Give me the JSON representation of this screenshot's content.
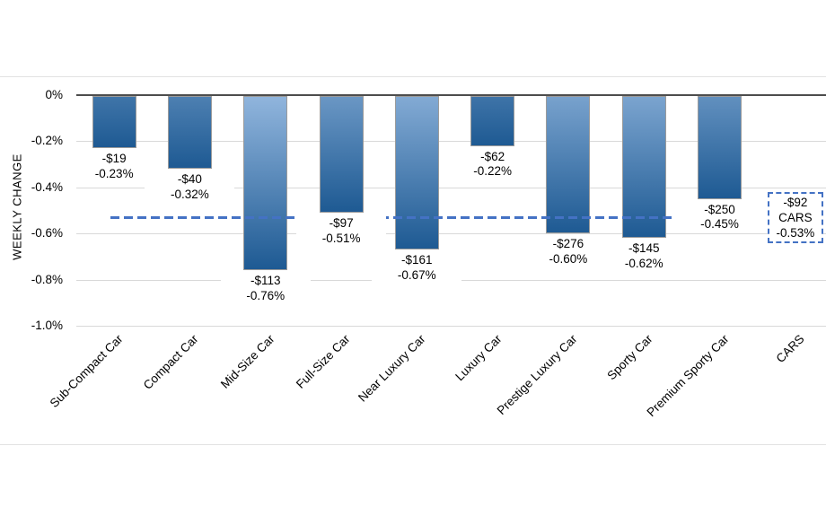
{
  "chart_data": {
    "type": "bar",
    "title": "",
    "ylabel": "WEEKLY CHANGE",
    "ylim": [
      -1.0,
      0
    ],
    "grid": true,
    "yticks": [
      {
        "value": 0,
        "label": "0%"
      },
      {
        "value": -0.2,
        "label": "-0.2%"
      },
      {
        "value": -0.4,
        "label": "-0.4%"
      },
      {
        "value": -0.6,
        "label": "-0.6%"
      },
      {
        "value": -0.8,
        "label": "-0.8%"
      },
      {
        "value": -1.0,
        "label": "-1.0%"
      }
    ],
    "categories": [
      {
        "label": "Sub-Compact Car",
        "value": -0.23,
        "money": "-$19",
        "pct_label": "-0.23%"
      },
      {
        "label": "Compact Car",
        "value": -0.32,
        "money": "-$40",
        "pct_label": "-0.32%"
      },
      {
        "label": "Mid-Size Car",
        "value": -0.76,
        "money": "-$113",
        "pct_label": "-0.76%"
      },
      {
        "label": "Full-Size Car",
        "value": -0.51,
        "money": "-$97",
        "pct_label": "-0.51%"
      },
      {
        "label": "Near Luxury Car",
        "value": -0.67,
        "money": "-$161",
        "pct_label": "-0.67%"
      },
      {
        "label": "Luxury Car",
        "value": -0.22,
        "money": "-$62",
        "pct_label": "-0.22%"
      },
      {
        "label": "Prestige Luxury Car",
        "value": -0.6,
        "money": "-$276",
        "pct_label": "-0.60%"
      },
      {
        "label": "Sporty Car",
        "value": -0.62,
        "money": "-$145",
        "pct_label": "-0.62%"
      },
      {
        "label": "Premium Sporty Car",
        "value": -0.45,
        "money": "-$250",
        "pct_label": "-0.45%"
      },
      {
        "label": "CARS",
        "value": -0.53,
        "money": "-$92",
        "pct_label": "-0.53%",
        "is_average": true
      }
    ],
    "average_line": {
      "category": "CARS",
      "value": -0.53,
      "box_lines": [
        "-$92",
        "CARS",
        "-0.53%"
      ],
      "style": "dashed"
    },
    "legend": null,
    "colors": {
      "bar_gradient_top": "#8FB4DC",
      "bar_gradient_bottom": "#1E5A93",
      "bar_border": "#9B9B9B",
      "average_line": "#4472C4",
      "gridline": "#D9D9D9",
      "zero_axis": "#4D4D4D",
      "frame_border": "#E2E2E2",
      "label_bg": "#FFFFFF",
      "text": "#000000"
    }
  }
}
